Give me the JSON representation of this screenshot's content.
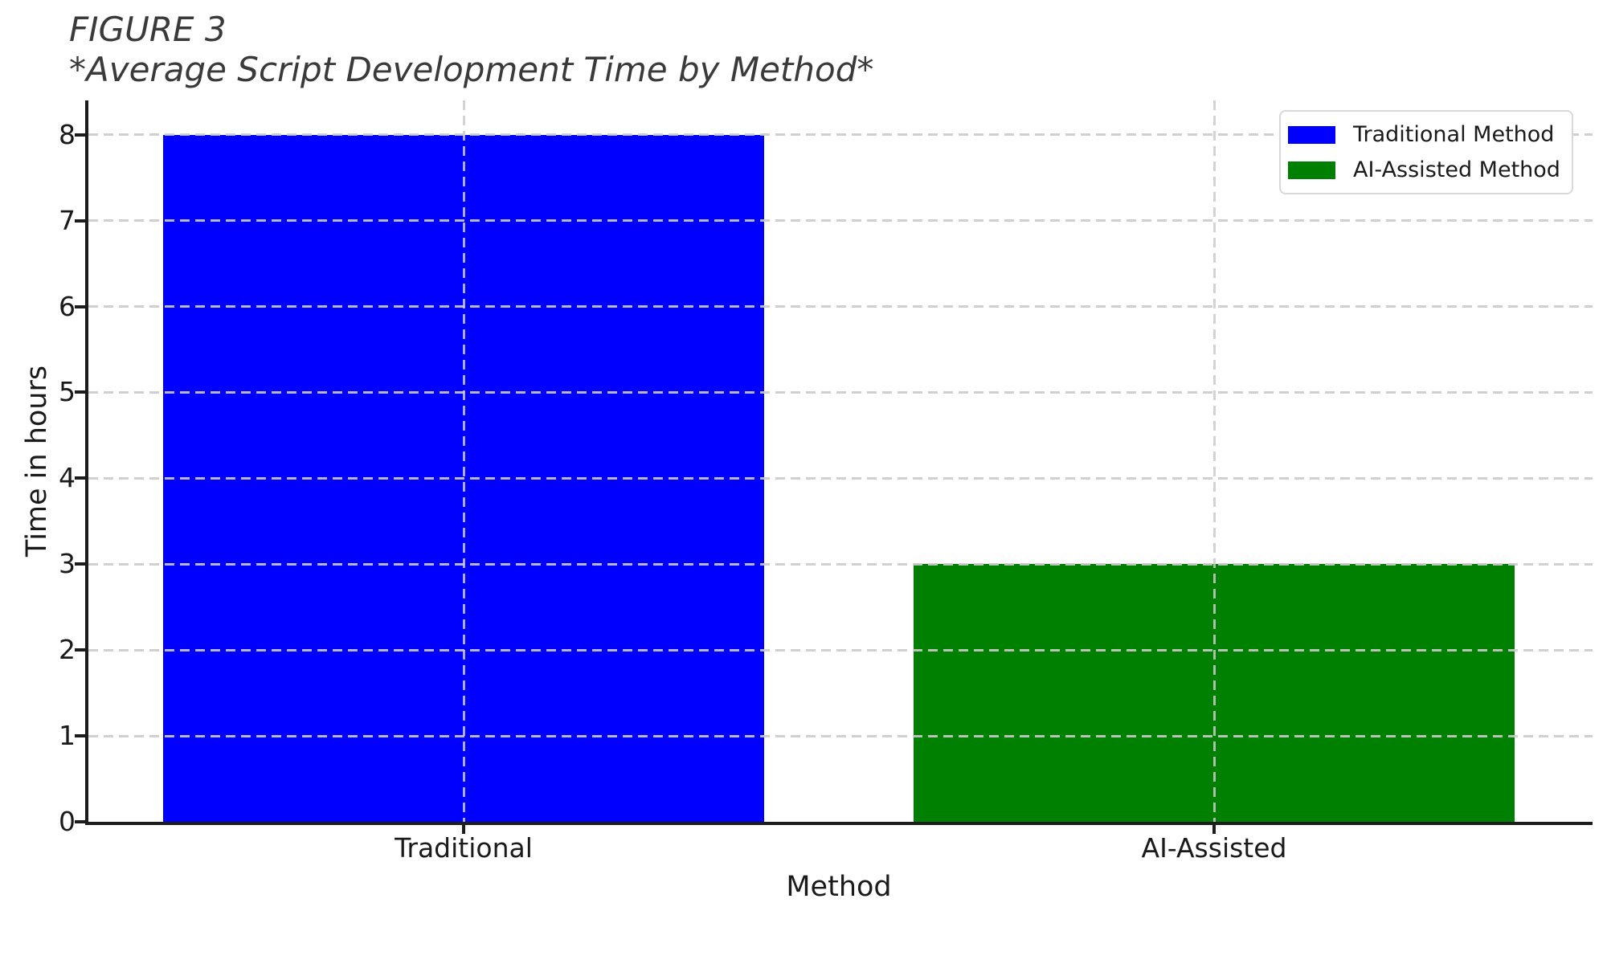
{
  "chart_data": {
    "type": "bar",
    "title": "FIGURE 3",
    "subtitle": "*Average Script Development Time by Method*",
    "xlabel": "Method",
    "ylabel": "Time in hours",
    "categories": [
      "Traditional",
      "AI-Assisted"
    ],
    "values": [
      8,
      3
    ],
    "bar_colors": [
      "#0000ff",
      "#008000"
    ],
    "bar_width_fraction": 0.8,
    "yticks": [
      0,
      1,
      2,
      3,
      4,
      5,
      6,
      7,
      8
    ],
    "ylim": [
      0,
      8.4
    ],
    "grid": {
      "horizontal": true,
      "vertical": true,
      "style": "dashed",
      "color": "#cbcbcb",
      "above_bars": true
    },
    "legend": {
      "position": "upper right",
      "entries": [
        {
          "label": "Traditional Method",
          "color": "#0000ff"
        },
        {
          "label": "AI-Assisted Method",
          "color": "#008000"
        }
      ]
    },
    "axis_color": "#1c1c1c",
    "text_color": "#1a1a1a",
    "title_color": "#3a3a3a"
  }
}
